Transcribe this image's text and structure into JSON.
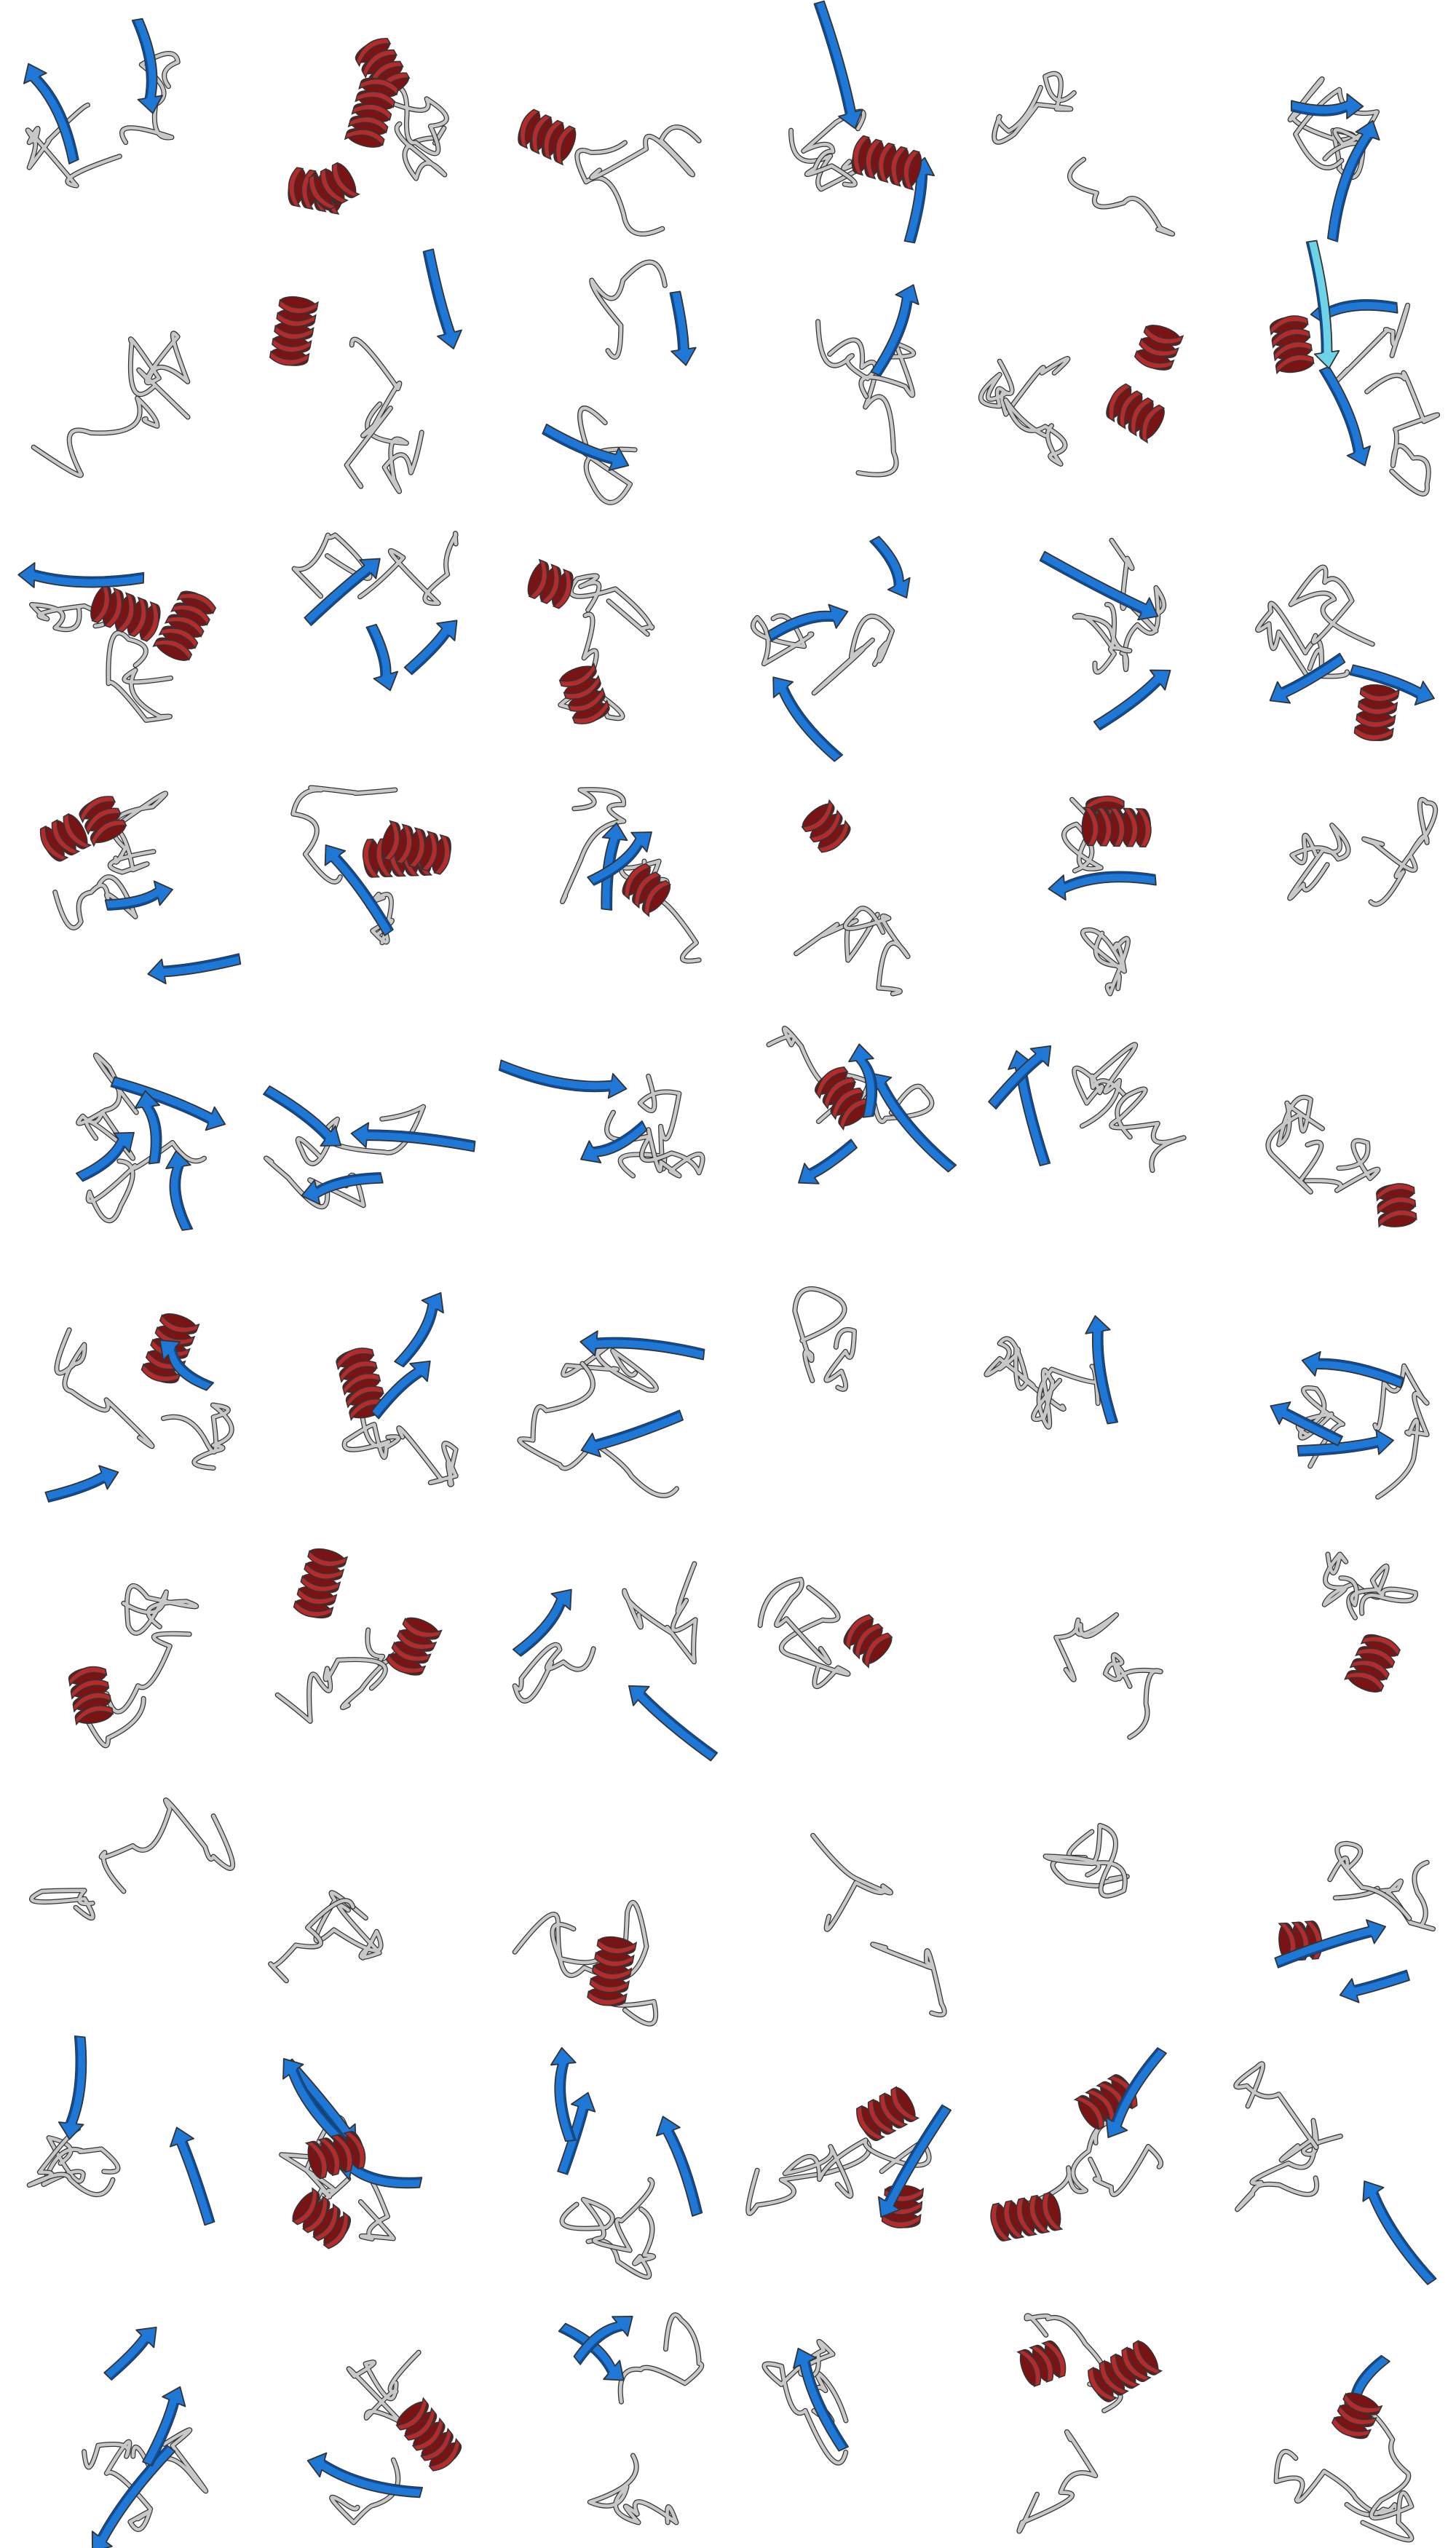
{
  "figure": {
    "grid": {
      "rows": 10,
      "columns": 6
    },
    "colors": {
      "helix": "#b52a2a",
      "helix_dark": "#7a1414",
      "strand": "#1f78d6",
      "strand_dark": "#0e4d96",
      "strand_light": "#6fd3e8",
      "coil": "#c8c8c8",
      "outline": "#333333",
      "background": "#ffffff"
    },
    "cells": [
      {
        "elements": [
          "strand",
          "strand",
          "coil"
        ]
      },
      {
        "elements": [
          "helix",
          "helix",
          "helix",
          "helix",
          "coil"
        ]
      },
      {
        "elements": [
          "helix",
          "coil"
        ]
      },
      {
        "elements": [
          "strand",
          "strand",
          "coil",
          "helix"
        ]
      },
      {
        "elements": [
          "coil"
        ]
      },
      {
        "elements": [
          "strand",
          "strand",
          "coil"
        ]
      },
      {
        "elements": [
          "coil"
        ]
      },
      {
        "elements": [
          "helix",
          "strand",
          "coil"
        ]
      },
      {
        "elements": [
          "strand",
          "strand",
          "coil"
        ]
      },
      {
        "elements": [
          "strand",
          "coil"
        ]
      },
      {
        "elements": [
          "helix",
          "helix",
          "coil"
        ]
      },
      {
        "elements": [
          "strand",
          "strand",
          "strand-light",
          "helix",
          "coil"
        ]
      },
      {
        "elements": [
          "helix",
          "helix",
          "strand",
          "coil"
        ]
      },
      {
        "elements": [
          "strand",
          "strand",
          "strand",
          "coil"
        ]
      },
      {
        "elements": [
          "helix",
          "helix",
          "coil"
        ]
      },
      {
        "elements": [
          "strand",
          "strand",
          "strand",
          "coil"
        ]
      },
      {
        "elements": [
          "strand",
          "strand",
          "coil"
        ]
      },
      {
        "elements": [
          "strand",
          "helix",
          "strand",
          "coil"
        ]
      },
      {
        "elements": [
          "strand",
          "strand",
          "helix",
          "helix",
          "coil"
        ]
      },
      {
        "elements": [
          "helix",
          "helix",
          "strand",
          "coil"
        ]
      },
      {
        "elements": [
          "helix",
          "strand",
          "strand",
          "coil"
        ]
      },
      {
        "elements": [
          "helix",
          "coil"
        ]
      },
      {
        "elements": [
          "helix",
          "helix",
          "strand",
          "coil"
        ]
      },
      {
        "elements": [
          "coil"
        ]
      },
      {
        "elements": [
          "strand",
          "strand",
          "strand",
          "strand",
          "coil"
        ]
      },
      {
        "elements": [
          "strand",
          "strand",
          "strand",
          "coil"
        ]
      },
      {
        "elements": [
          "strand",
          "strand",
          "coil"
        ]
      },
      {
        "elements": [
          "helix",
          "strand",
          "strand",
          "strand",
          "coil"
        ]
      },
      {
        "elements": [
          "strand",
          "strand",
          "coil"
        ]
      },
      {
        "elements": [
          "helix",
          "coil"
        ]
      },
      {
        "elements": [
          "helix",
          "strand",
          "strand",
          "coil"
        ]
      },
      {
        "elements": [
          "helix",
          "strand",
          "strand",
          "coil"
        ]
      },
      {
        "elements": [
          "strand",
          "strand",
          "coil"
        ]
      },
      {
        "elements": [
          "coil"
        ]
      },
      {
        "elements": [
          "strand",
          "coil"
        ]
      },
      {
        "elements": [
          "strand",
          "strand",
          "strand",
          "coil"
        ]
      },
      {
        "elements": [
          "helix",
          "coil"
        ]
      },
      {
        "elements": [
          "helix",
          "helix",
          "coil"
        ]
      },
      {
        "elements": [
          "strand",
          "strand",
          "coil"
        ]
      },
      {
        "elements": [
          "helix",
          "coil"
        ]
      },
      {
        "elements": [
          "coil"
        ]
      },
      {
        "elements": [
          "helix",
          "coil"
        ]
      },
      {
        "elements": [
          "coil"
        ]
      },
      {
        "elements": [
          "coil"
        ]
      },
      {
        "elements": [
          "helix",
          "coil"
        ]
      },
      {
        "elements": [
          "coil"
        ]
      },
      {
        "elements": [
          "coil"
        ]
      },
      {
        "elements": [
          "helix",
          "strand",
          "strand",
          "coil"
        ]
      },
      {
        "elements": [
          "strand",
          "strand",
          "coil"
        ]
      },
      {
        "elements": [
          "strand",
          "strand",
          "strand",
          "helix",
          "helix",
          "coil"
        ]
      },
      {
        "elements": [
          "strand",
          "strand",
          "strand",
          "coil"
        ]
      },
      {
        "elements": [
          "helix",
          "helix",
          "strand",
          "coil"
        ]
      },
      {
        "elements": [
          "helix",
          "strand",
          "helix",
          "coil"
        ]
      },
      {
        "elements": [
          "strand",
          "coil"
        ]
      },
      {
        "elements": [
          "strand",
          "strand",
          "strand",
          "coil"
        ]
      },
      {
        "elements": [
          "helix",
          "strand",
          "coil"
        ]
      },
      {
        "elements": [
          "strand",
          "strand",
          "coil"
        ]
      },
      {
        "elements": [
          "strand",
          "coil"
        ]
      },
      {
        "elements": [
          "helix",
          "helix",
          "coil"
        ]
      },
      {
        "elements": [
          "strand",
          "helix",
          "coil"
        ]
      }
    ]
  }
}
